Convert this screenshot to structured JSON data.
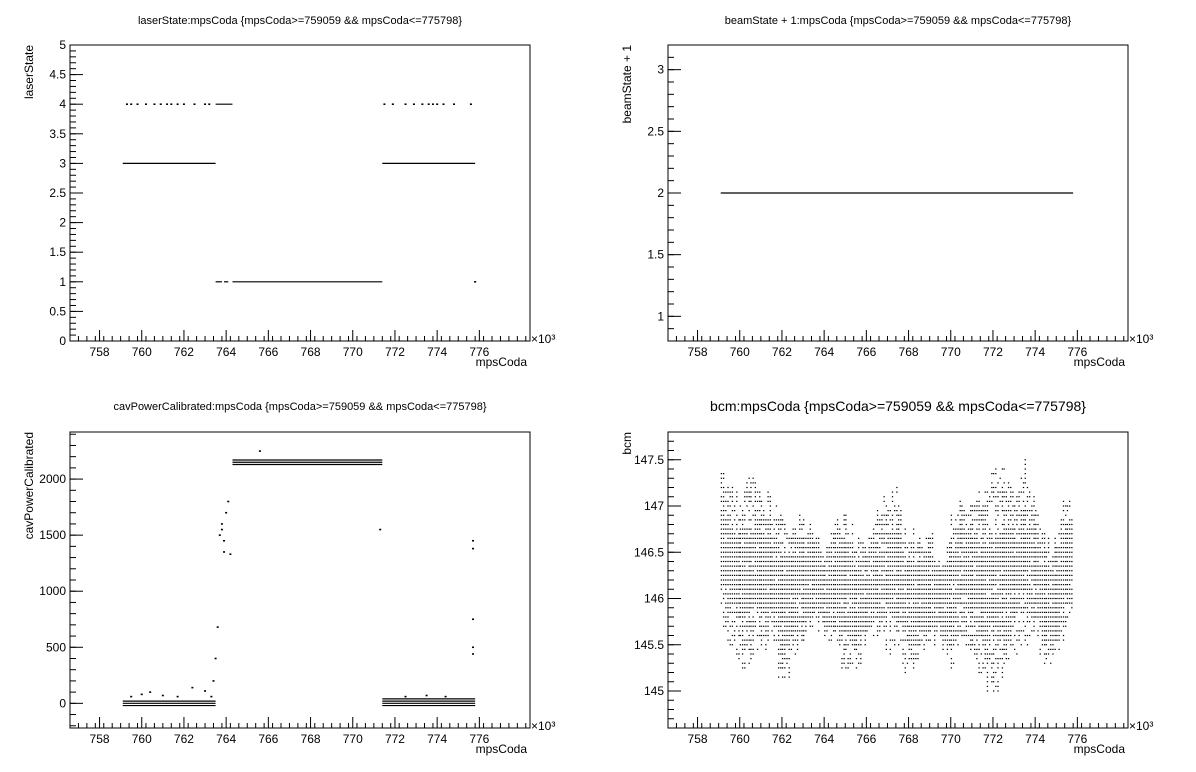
{
  "chart_data": [
    {
      "type": "scatter",
      "title": "laserState:mpsCoda {mpsCoda>=759059 && mpsCoda<=775798}",
      "xlabel": "mpsCoda",
      "ylabel": "laserState",
      "x_multiplier_label": "×10³",
      "xlim": [
        756.6,
        778.4
      ],
      "ylim": [
        0,
        5
      ],
      "x_ticks": [
        758,
        760,
        762,
        764,
        766,
        768,
        770,
        772,
        774,
        776
      ],
      "y_ticks": [
        0,
        0.5,
        1,
        1.5,
        2,
        2.5,
        3,
        3.5,
        4,
        4.5,
        5
      ],
      "y_tick_labels": [
        "0",
        "0.5",
        "1",
        "1.5",
        "2",
        "2.5",
        "3",
        "3.5",
        "4",
        "4.5",
        "5"
      ],
      "series": [
        {
          "segments": [
            [
              759.1,
              763.5,
              3
            ],
            [
              771.4,
              775.8,
              3
            ],
            [
              764.3,
              771.4,
              1
            ],
            [
              763.5,
              763.8,
              1
            ],
            [
              763.9,
              764.1,
              1
            ],
            [
              763.5,
              764.3,
              4
            ]
          ]
        },
        {
          "points": [
            [
              759.3,
              4
            ],
            [
              759.5,
              4
            ],
            [
              759.8,
              4
            ],
            [
              760.2,
              4
            ],
            [
              760.6,
              4
            ],
            [
              760.9,
              4
            ],
            [
              761.2,
              4
            ],
            [
              761.4,
              4
            ],
            [
              761.7,
              4
            ],
            [
              762.0,
              4
            ],
            [
              762.5,
              4
            ],
            [
              763.0,
              4
            ],
            [
              763.2,
              4
            ],
            [
              771.5,
              4
            ],
            [
              771.9,
              4
            ],
            [
              772.5,
              4
            ],
            [
              772.9,
              4
            ],
            [
              773.3,
              4
            ],
            [
              773.6,
              4
            ],
            [
              773.8,
              4
            ],
            [
              774.0,
              4
            ],
            [
              774.3,
              4
            ],
            [
              774.8,
              4
            ],
            [
              775.6,
              4
            ],
            [
              775.8,
              1
            ]
          ]
        }
      ]
    },
    {
      "type": "line",
      "title": "beamState + 1:mpsCoda {mpsCoda>=759059 && mpsCoda<=775798}",
      "xlabel": "mpsCoda",
      "ylabel": "beamState + 1",
      "x_multiplier_label": "×10³",
      "xlim": [
        756.6,
        778.4
      ],
      "ylim": [
        0.8,
        3.2
      ],
      "x_ticks": [
        758,
        760,
        762,
        764,
        766,
        768,
        770,
        772,
        774,
        776
      ],
      "y_ticks": [
        1,
        1.5,
        2,
        2.5,
        3
      ],
      "y_tick_labels": [
        "1",
        "1.5",
        "2",
        "2.5",
        "3"
      ],
      "series": [
        {
          "segments": [
            [
              759.1,
              775.8,
              2
            ]
          ]
        }
      ]
    },
    {
      "type": "scatter",
      "title": "cavPowerCalibrated:mpsCoda {mpsCoda>=759059 && mpsCoda<=775798}",
      "xlabel": "mpsCoda",
      "ylabel": "cavPowerCalibrated",
      "x_multiplier_label": "×10³",
      "xlim": [
        756.6,
        778.4
      ],
      "ylim": [
        -220,
        2420
      ],
      "x_ticks": [
        758,
        760,
        762,
        764,
        766,
        768,
        770,
        772,
        774,
        776
      ],
      "y_ticks": [
        0,
        500,
        1000,
        1500,
        2000
      ],
      "y_tick_labels": [
        "0",
        "500",
        "1000",
        "1500",
        "2000"
      ],
      "series": [
        {
          "segments": [
            [
              759.1,
              763.5,
              0
            ],
            [
              759.1,
              763.5,
              20
            ],
            [
              759.1,
              763.5,
              -20
            ],
            [
              771.4,
              775.8,
              0
            ],
            [
              771.4,
              775.8,
              20
            ],
            [
              771.4,
              775.8,
              40
            ],
            [
              771.4,
              775.8,
              -20
            ],
            [
              764.3,
              771.4,
              2130
            ],
            [
              764.3,
              771.4,
              2150
            ],
            [
              764.3,
              771.4,
              2170
            ]
          ]
        },
        {
          "points": [
            [
              759.5,
              60
            ],
            [
              760.0,
              80
            ],
            [
              760.4,
              100
            ],
            [
              761.0,
              70
            ],
            [
              761.7,
              60
            ],
            [
              762.4,
              140
            ],
            [
              763.0,
              110
            ],
            [
              763.3,
              60
            ],
            [
              763.4,
              200
            ],
            [
              763.5,
              400
            ],
            [
              763.6,
              680
            ],
            [
              763.7,
              1500
            ],
            [
              763.8,
              1550
            ],
            [
              763.8,
              1600
            ],
            [
              763.9,
              1450
            ],
            [
              764.0,
              1700
            ],
            [
              764.1,
              1800
            ],
            [
              763.9,
              1350
            ],
            [
              764.2,
              1330
            ],
            [
              765.6,
              2250
            ],
            [
              771.3,
              1550
            ],
            [
              775.7,
              1450
            ],
            [
              775.7,
              1380
            ],
            [
              775.7,
              750
            ],
            [
              775.7,
              500
            ],
            [
              775.7,
              440
            ],
            [
              772.5,
              60
            ],
            [
              773.5,
              70
            ],
            [
              774.4,
              60
            ]
          ]
        }
      ]
    },
    {
      "type": "scatter",
      "title": "bcm:mpsCoda {mpsCoda>=759059 && mpsCoda<=775798}",
      "xlabel": "mpsCoda",
      "ylabel": "bcm",
      "x_multiplier_label": "×10³",
      "xlim": [
        756.6,
        778.4
      ],
      "ylim": [
        144.6,
        147.8
      ],
      "x_ticks": [
        758,
        760,
        762,
        764,
        766,
        768,
        770,
        772,
        774,
        776
      ],
      "y_ticks": [
        145,
        145.5,
        146,
        146.5,
        147,
        147.5
      ],
      "y_tick_labels": [
        "145",
        "145.5",
        "146",
        "146.5",
        "147",
        "147.5"
      ],
      "x_range": [
        759.1,
        775.8
      ],
      "series": [
        {
          "bands": [
            [
              759.1,
              145.7,
              147.4
            ],
            [
              760.0,
              145.3,
              147.0
            ],
            [
              760.5,
              145.4,
              147.3
            ],
            [
              761.0,
              145.5,
              147.1
            ],
            [
              761.5,
              145.6,
              147.0
            ],
            [
              762.0,
              145.0,
              146.9
            ],
            [
              762.5,
              145.4,
              146.7
            ],
            [
              763.0,
              145.5,
              146.9
            ],
            [
              763.5,
              145.8,
              146.6
            ],
            [
              764.0,
              145.7,
              146.5
            ],
            [
              764.5,
              145.6,
              146.8
            ],
            [
              765.0,
              145.2,
              146.9
            ],
            [
              765.5,
              145.3,
              146.6
            ],
            [
              766.0,
              145.5,
              146.6
            ],
            [
              766.5,
              145.6,
              147.0
            ],
            [
              767.0,
              145.4,
              147.1
            ],
            [
              767.5,
              145.5,
              147.1
            ],
            [
              768.0,
              145.2,
              146.7
            ],
            [
              768.5,
              145.4,
              146.6
            ],
            [
              769.0,
              145.6,
              146.7
            ],
            [
              769.5,
              145.6,
              146.4
            ],
            [
              770.0,
              145.3,
              146.8
            ],
            [
              770.5,
              145.6,
              147.1
            ],
            [
              771.0,
              145.4,
              147.0
            ],
            [
              771.5,
              145.2,
              147.1
            ],
            [
              772.0,
              144.9,
              147.4
            ],
            [
              772.5,
              145.3,
              147.3
            ],
            [
              773.0,
              145.4,
              147.1
            ],
            [
              773.5,
              145.5,
              147.4
            ],
            [
              774.0,
              145.6,
              147.0
            ],
            [
              774.5,
              145.2,
              146.6
            ],
            [
              775.0,
              145.5,
              146.6
            ],
            [
              775.5,
              145.7,
              147.2
            ],
            [
              775.8,
              145.8,
              147.0
            ]
          ]
        }
      ]
    }
  ]
}
